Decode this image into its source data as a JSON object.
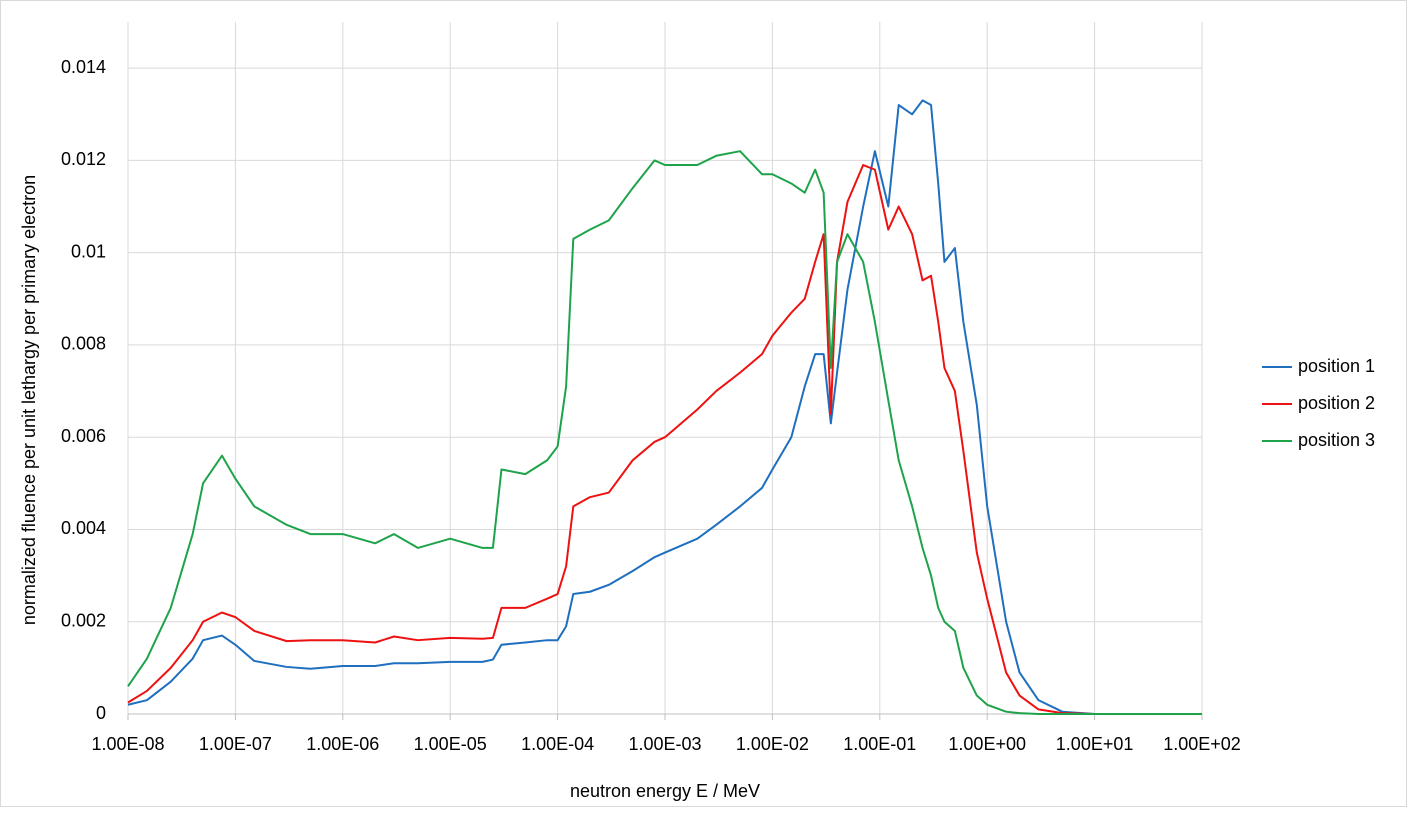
{
  "chart_data": {
    "type": "line",
    "xlabel": "neutron energy E / MeV",
    "ylabel": "normalized fluence per unit lethargy per primary electron",
    "xscale": "log",
    "grid": true,
    "legend": "right",
    "xlim": [
      1e-08,
      100
    ],
    "ylim": [
      0,
      0.015
    ],
    "xticks": [
      {
        "value": 1e-08,
        "label": "1.00E-08"
      },
      {
        "value": 1e-07,
        "label": "1.00E-07"
      },
      {
        "value": 1e-06,
        "label": "1.00E-06"
      },
      {
        "value": 1e-05,
        "label": "1.00E-05"
      },
      {
        "value": 0.0001,
        "label": "1.00E-04"
      },
      {
        "value": 0.001,
        "label": "1.00E-03"
      },
      {
        "value": 0.01,
        "label": "1.00E-02"
      },
      {
        "value": 0.1,
        "label": "1.00E-01"
      },
      {
        "value": 1,
        "label": "1.00E+00"
      },
      {
        "value": 10,
        "label": "1.00E+01"
      },
      {
        "value": 100,
        "label": "1.00E+02"
      }
    ],
    "yticks": [
      0,
      0.002,
      0.004,
      0.006,
      0.008,
      0.01,
      0.012,
      0.014
    ],
    "x": [
      1e-08,
      1.5e-08,
      2.5e-08,
      4e-08,
      5e-08,
      7.5e-08,
      1e-07,
      1.5e-07,
      3e-07,
      5e-07,
      1e-06,
      2e-06,
      3e-06,
      5e-06,
      1e-05,
      2e-05,
      2.5e-05,
      3e-05,
      5e-05,
      8e-05,
      0.0001,
      0.00012,
      0.00014,
      0.0002,
      0.0003,
      0.0005,
      0.0008,
      0.001,
      0.002,
      0.003,
      0.005,
      0.008,
      0.01,
      0.015,
      0.02,
      0.025,
      0.03,
      0.035,
      0.04,
      0.05,
      0.07,
      0.09,
      0.12,
      0.15,
      0.2,
      0.25,
      0.3,
      0.35,
      0.4,
      0.5,
      0.6,
      0.8,
      1,
      1.5,
      2,
      3,
      5,
      10,
      100
    ],
    "series": [
      {
        "name": "position 1",
        "color": "#1f6fbf",
        "values": [
          0.0002,
          0.0003,
          0.0007,
          0.0012,
          0.0016,
          0.0017,
          0.0015,
          0.00115,
          0.00102,
          0.00098,
          0.00104,
          0.00104,
          0.0011,
          0.0011,
          0.00113,
          0.00113,
          0.00118,
          0.0015,
          0.00155,
          0.0016,
          0.0016,
          0.0019,
          0.0026,
          0.00265,
          0.0028,
          0.0031,
          0.0034,
          0.0035,
          0.0038,
          0.0041,
          0.0045,
          0.0049,
          0.0053,
          0.006,
          0.0071,
          0.0078,
          0.0078,
          0.0063,
          0.0074,
          0.0092,
          0.011,
          0.0122,
          0.011,
          0.0132,
          0.013,
          0.0133,
          0.0132,
          0.0115,
          0.0098,
          0.0101,
          0.0085,
          0.0067,
          0.0045,
          0.002,
          0.0009,
          0.0003,
          5e-05,
          0,
          0
        ]
      },
      {
        "name": "position 2",
        "color": "#ee1111",
        "values": [
          0.00025,
          0.0005,
          0.001,
          0.0016,
          0.002,
          0.0022,
          0.0021,
          0.0018,
          0.00158,
          0.0016,
          0.0016,
          0.00155,
          0.00168,
          0.0016,
          0.00165,
          0.00163,
          0.00165,
          0.0023,
          0.0023,
          0.0025,
          0.0026,
          0.0032,
          0.0045,
          0.0047,
          0.0048,
          0.0055,
          0.0059,
          0.006,
          0.0066,
          0.007,
          0.0074,
          0.0078,
          0.0082,
          0.0087,
          0.009,
          0.0098,
          0.0104,
          0.0065,
          0.0098,
          0.0111,
          0.0119,
          0.0118,
          0.0105,
          0.011,
          0.0104,
          0.0094,
          0.0095,
          0.0085,
          0.0075,
          0.007,
          0.0057,
          0.0035,
          0.0025,
          0.0009,
          0.0004,
          0.0001,
          2e-05,
          0,
          0
        ]
      },
      {
        "name": "position 3",
        "color": "#1fa34a",
        "values": [
          0.0006,
          0.0012,
          0.0023,
          0.0039,
          0.005,
          0.0056,
          0.0051,
          0.0045,
          0.0041,
          0.0039,
          0.0039,
          0.0037,
          0.0039,
          0.0036,
          0.0038,
          0.0036,
          0.0036,
          0.0053,
          0.0052,
          0.0055,
          0.0058,
          0.0071,
          0.0103,
          0.0105,
          0.0107,
          0.0114,
          0.012,
          0.0119,
          0.0119,
          0.0121,
          0.0122,
          0.0117,
          0.0117,
          0.0115,
          0.0113,
          0.0118,
          0.0113,
          0.0075,
          0.0098,
          0.0104,
          0.0098,
          0.0085,
          0.0068,
          0.0055,
          0.0045,
          0.0036,
          0.003,
          0.0023,
          0.002,
          0.0018,
          0.001,
          0.0004,
          0.0002,
          5e-05,
          2e-05,
          0,
          0,
          0,
          0
        ]
      }
    ]
  }
}
